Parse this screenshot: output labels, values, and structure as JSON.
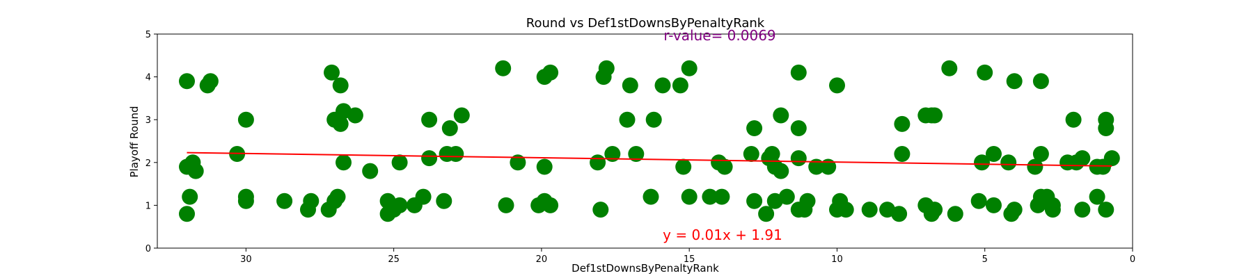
{
  "chart_data": {
    "type": "scatter",
    "title": "Round vs Def1stDownsByPenaltyRank",
    "xlabel": "Def1stDownsByPenaltyRank",
    "ylabel": "Playoff Round",
    "xlim": [
      33,
      0
    ],
    "ylim": [
      0,
      5
    ],
    "x_reversed": true,
    "xticks": [
      30,
      25,
      20,
      15,
      10,
      5,
      0
    ],
    "yticks": [
      0,
      1,
      2,
      3,
      4,
      5
    ],
    "grid": false,
    "point_color": "#008000",
    "line_color": "#ff0000",
    "annotation_color": "#800080",
    "regression": {
      "slope": 0.01,
      "intercept": 1.91
    },
    "annotations": {
      "r_value": "r-value= 0.0069",
      "equation": "y = 0.01x + 1.91"
    },
    "points": [
      {
        "x": 32.0,
        "y": 3.9
      },
      {
        "x": 31.3,
        "y": 3.8
      },
      {
        "x": 31.2,
        "y": 3.9
      },
      {
        "x": 32.0,
        "y": 1.9
      },
      {
        "x": 31.8,
        "y": 2.0
      },
      {
        "x": 31.7,
        "y": 1.8
      },
      {
        "x": 31.9,
        "y": 1.2
      },
      {
        "x": 32.0,
        "y": 0.8
      },
      {
        "x": 30.0,
        "y": 3.0
      },
      {
        "x": 30.3,
        "y": 2.2
      },
      {
        "x": 30.0,
        "y": 1.2
      },
      {
        "x": 30.0,
        "y": 1.1
      },
      {
        "x": 28.7,
        "y": 1.1
      },
      {
        "x": 27.8,
        "y": 1.1
      },
      {
        "x": 27.9,
        "y": 0.9
      },
      {
        "x": 27.2,
        "y": 0.9
      },
      {
        "x": 27.1,
        "y": 4.1
      },
      {
        "x": 26.8,
        "y": 3.8
      },
      {
        "x": 27.0,
        "y": 3.0
      },
      {
        "x": 26.7,
        "y": 3.2
      },
      {
        "x": 26.8,
        "y": 2.9
      },
      {
        "x": 26.3,
        "y": 3.1
      },
      {
        "x": 26.7,
        "y": 2.0
      },
      {
        "x": 26.9,
        "y": 1.2
      },
      {
        "x": 27.0,
        "y": 1.1
      },
      {
        "x": 25.8,
        "y": 1.8
      },
      {
        "x": 25.2,
        "y": 1.1
      },
      {
        "x": 25.0,
        "y": 0.9
      },
      {
        "x": 25.2,
        "y": 0.8
      },
      {
        "x": 24.8,
        "y": 1.0
      },
      {
        "x": 24.8,
        "y": 2.0
      },
      {
        "x": 24.3,
        "y": 1.0
      },
      {
        "x": 24.0,
        "y": 1.2
      },
      {
        "x": 23.8,
        "y": 3.0
      },
      {
        "x": 23.8,
        "y": 2.1
      },
      {
        "x": 23.3,
        "y": 1.1
      },
      {
        "x": 23.2,
        "y": 2.2
      },
      {
        "x": 23.1,
        "y": 2.8
      },
      {
        "x": 22.9,
        "y": 2.2
      },
      {
        "x": 22.7,
        "y": 3.1
      },
      {
        "x": 21.3,
        "y": 4.2
      },
      {
        "x": 21.2,
        "y": 1.0
      },
      {
        "x": 20.8,
        "y": 2.0
      },
      {
        "x": 20.1,
        "y": 1.0
      },
      {
        "x": 19.9,
        "y": 1.1
      },
      {
        "x": 19.7,
        "y": 1.0
      },
      {
        "x": 19.9,
        "y": 1.9
      },
      {
        "x": 19.9,
        "y": 4.0
      },
      {
        "x": 19.7,
        "y": 4.1
      },
      {
        "x": 18.1,
        "y": 2.0
      },
      {
        "x": 17.9,
        "y": 4.0
      },
      {
        "x": 17.8,
        "y": 4.2
      },
      {
        "x": 18.0,
        "y": 0.9
      },
      {
        "x": 17.6,
        "y": 2.2
      },
      {
        "x": 17.0,
        "y": 3.8
      },
      {
        "x": 17.1,
        "y": 3.0
      },
      {
        "x": 16.8,
        "y": 2.2
      },
      {
        "x": 16.3,
        "y": 1.2
      },
      {
        "x": 16.2,
        "y": 3.0
      },
      {
        "x": 15.9,
        "y": 3.8
      },
      {
        "x": 15.3,
        "y": 3.8
      },
      {
        "x": 15.0,
        "y": 4.2
      },
      {
        "x": 15.2,
        "y": 1.9
      },
      {
        "x": 15.0,
        "y": 1.2
      },
      {
        "x": 14.3,
        "y": 1.2
      },
      {
        "x": 13.9,
        "y": 1.2
      },
      {
        "x": 14.0,
        "y": 2.0
      },
      {
        "x": 13.8,
        "y": 1.9
      },
      {
        "x": 12.9,
        "y": 2.2
      },
      {
        "x": 12.8,
        "y": 2.8
      },
      {
        "x": 12.8,
        "y": 1.1
      },
      {
        "x": 12.4,
        "y": 0.8
      },
      {
        "x": 12.3,
        "y": 2.1
      },
      {
        "x": 12.1,
        "y": 1.9
      },
      {
        "x": 12.2,
        "y": 2.2
      },
      {
        "x": 11.9,
        "y": 1.8
      },
      {
        "x": 11.9,
        "y": 3.1
      },
      {
        "x": 12.1,
        "y": 1.1
      },
      {
        "x": 11.7,
        "y": 1.2
      },
      {
        "x": 11.3,
        "y": 4.1
      },
      {
        "x": 11.3,
        "y": 2.8
      },
      {
        "x": 11.3,
        "y": 2.1
      },
      {
        "x": 11.3,
        "y": 0.9
      },
      {
        "x": 11.1,
        "y": 0.9
      },
      {
        "x": 11.0,
        "y": 1.1
      },
      {
        "x": 10.7,
        "y": 1.9
      },
      {
        "x": 10.3,
        "y": 1.9
      },
      {
        "x": 10.0,
        "y": 3.8
      },
      {
        "x": 10.0,
        "y": 0.9
      },
      {
        "x": 9.9,
        "y": 1.1
      },
      {
        "x": 9.7,
        "y": 0.9
      },
      {
        "x": 8.9,
        "y": 0.9
      },
      {
        "x": 8.3,
        "y": 0.9
      },
      {
        "x": 7.9,
        "y": 0.8
      },
      {
        "x": 7.8,
        "y": 2.9
      },
      {
        "x": 7.8,
        "y": 2.2
      },
      {
        "x": 7.0,
        "y": 3.1
      },
      {
        "x": 6.8,
        "y": 3.1
      },
      {
        "x": 6.7,
        "y": 3.1
      },
      {
        "x": 7.0,
        "y": 1.0
      },
      {
        "x": 6.8,
        "y": 0.8
      },
      {
        "x": 6.7,
        "y": 0.9
      },
      {
        "x": 6.2,
        "y": 4.2
      },
      {
        "x": 6.0,
        "y": 0.8
      },
      {
        "x": 5.2,
        "y": 1.1
      },
      {
        "x": 5.0,
        "y": 4.1
      },
      {
        "x": 5.1,
        "y": 2.0
      },
      {
        "x": 4.7,
        "y": 2.2
      },
      {
        "x": 4.7,
        "y": 1.0
      },
      {
        "x": 4.2,
        "y": 2.0
      },
      {
        "x": 4.0,
        "y": 3.9
      },
      {
        "x": 4.1,
        "y": 0.8
      },
      {
        "x": 4.0,
        "y": 0.9
      },
      {
        "x": 3.1,
        "y": 3.9
      },
      {
        "x": 3.1,
        "y": 2.2
      },
      {
        "x": 3.3,
        "y": 1.9
      },
      {
        "x": 3.2,
        "y": 1.0
      },
      {
        "x": 3.1,
        "y": 1.2
      },
      {
        "x": 2.9,
        "y": 1.2
      },
      {
        "x": 2.7,
        "y": 1.0
      },
      {
        "x": 2.7,
        "y": 0.9
      },
      {
        "x": 2.2,
        "y": 2.0
      },
      {
        "x": 2.0,
        "y": 3.0
      },
      {
        "x": 1.9,
        "y": 2.0
      },
      {
        "x": 1.7,
        "y": 2.1
      },
      {
        "x": 1.7,
        "y": 0.9
      },
      {
        "x": 1.2,
        "y": 1.2
      },
      {
        "x": 1.2,
        "y": 1.9
      },
      {
        "x": 1.0,
        "y": 1.9
      },
      {
        "x": 0.9,
        "y": 3.0
      },
      {
        "x": 0.9,
        "y": 2.8
      },
      {
        "x": 0.9,
        "y": 0.9
      },
      {
        "x": 0.7,
        "y": 2.1
      }
    ]
  }
}
